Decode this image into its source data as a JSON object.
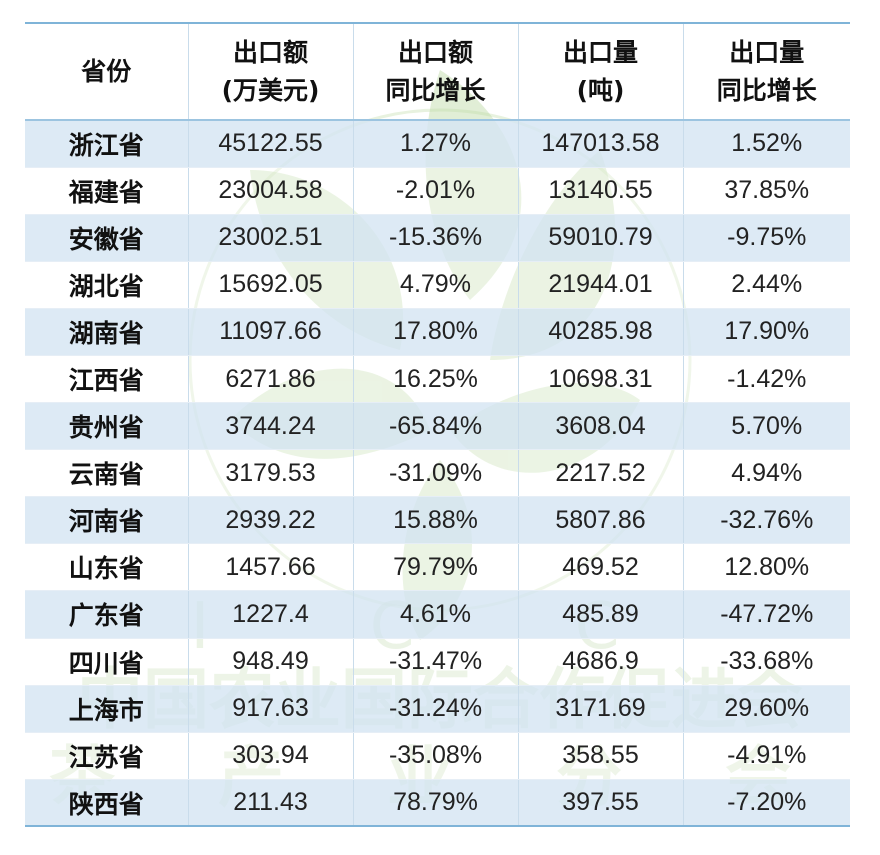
{
  "watermark": {
    "letters": "I C C",
    "org_line1": "中国农业国际合作促进会",
    "org_line2": "茶 产 业 分 会",
    "leaf_color": "#bcd9a4"
  },
  "table": {
    "headers": [
      {
        "line1": "省份",
        "line2": ""
      },
      {
        "line1": "出口额",
        "line2": "(万美元)"
      },
      {
        "line1": "出口额",
        "line2": "同比增长"
      },
      {
        "line1": "出口量",
        "line2": "(吨)"
      },
      {
        "line1": "出口量",
        "line2": "同比增长"
      }
    ],
    "rows": [
      [
        "浙江省",
        "45122.55",
        "1.27%",
        "147013.58",
        "1.52%"
      ],
      [
        "福建省",
        "23004.58",
        "-2.01%",
        "13140.55",
        "37.85%"
      ],
      [
        "安徽省",
        "23002.51",
        "-15.36%",
        "59010.79",
        "-9.75%"
      ],
      [
        "湖北省",
        "15692.05",
        "4.79%",
        "21944.01",
        "2.44%"
      ],
      [
        "湖南省",
        "11097.66",
        "17.80%",
        "40285.98",
        "17.90%"
      ],
      [
        "江西省",
        "6271.86",
        "16.25%",
        "10698.31",
        "-1.42%"
      ],
      [
        "贵州省",
        "3744.24",
        "-65.84%",
        "3608.04",
        "5.70%"
      ],
      [
        "云南省",
        "3179.53",
        "-31.09%",
        "2217.52",
        "4.94%"
      ],
      [
        "河南省",
        "2939.22",
        "15.88%",
        "5807.86",
        "-32.76%"
      ],
      [
        "山东省",
        "1457.66",
        "79.79%",
        "469.52",
        "12.80%"
      ],
      [
        "广东省",
        "1227.4",
        "4.61%",
        "485.89",
        "-47.72%"
      ],
      [
        "四川省",
        "948.49",
        "-31.47%",
        "4686.9",
        "-33.68%"
      ],
      [
        "上海市",
        "917.63",
        "-31.24%",
        "3171.69",
        "29.60%"
      ],
      [
        "江苏省",
        "303.94",
        "-35.08%",
        "358.55",
        "-4.91%"
      ],
      [
        "陕西省",
        "211.43",
        "78.79%",
        "397.55",
        "-7.20%"
      ]
    ]
  }
}
